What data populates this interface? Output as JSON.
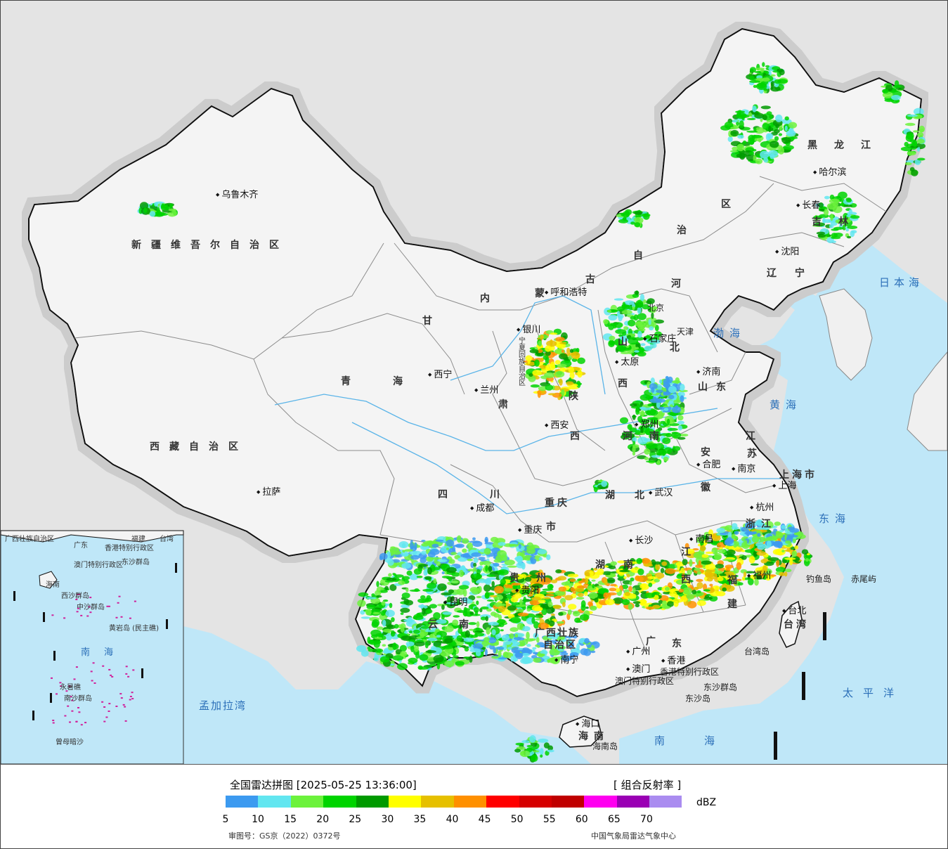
{
  "map": {
    "colors": {
      "land": "#f4f4f4",
      "outside": "#e4e4e4",
      "sea": "#bfe7f8",
      "border": "#111111",
      "province": "#8c8c8c",
      "river": "#5ab4e8"
    },
    "provinces": [
      {
        "id": "xinjiang",
        "text": "新疆维吾尔自治区"
      },
      {
        "id": "xizang",
        "text": "西藏自治区"
      },
      {
        "id": "qinghai",
        "text": "青海"
      },
      {
        "id": "gansu",
        "text": "甘"
      },
      {
        "id": "gansu2",
        "text": "肃"
      },
      {
        "id": "neimenggu1",
        "text": "内"
      },
      {
        "id": "neimenggu2",
        "text": "蒙"
      },
      {
        "id": "neimenggu3",
        "text": "古"
      },
      {
        "id": "neimenggu4",
        "text": "自"
      },
      {
        "id": "neimenggu5",
        "text": "治"
      },
      {
        "id": "neimenggu6",
        "text": "区"
      },
      {
        "id": "heilongjiang",
        "text": "黑龙江"
      },
      {
        "id": "jilin",
        "text": "吉林"
      },
      {
        "id": "liaoning",
        "text": "辽宁"
      },
      {
        "id": "hebei1",
        "text": "河"
      },
      {
        "id": "hebei2",
        "text": "北"
      },
      {
        "id": "shanxi1",
        "text": "山"
      },
      {
        "id": "shanxi2",
        "text": "西"
      },
      {
        "id": "shaanxi1",
        "text": "陕"
      },
      {
        "id": "shaanxi2",
        "text": "西"
      },
      {
        "id": "shandong",
        "text": "山东"
      },
      {
        "id": "henan",
        "text": "河南"
      },
      {
        "id": "jiangsu1",
        "text": "江"
      },
      {
        "id": "jiangsu2",
        "text": "苏"
      },
      {
        "id": "anhui1",
        "text": "安"
      },
      {
        "id": "anhui2",
        "text": "徽"
      },
      {
        "id": "shanghai",
        "text": "上海市"
      },
      {
        "id": "zhejiang",
        "text": "浙江"
      },
      {
        "id": "sichuan",
        "text": "四川"
      },
      {
        "id": "chongqing1",
        "text": "重庆"
      },
      {
        "id": "chongqing2",
        "text": "市"
      },
      {
        "id": "hubei",
        "text": "湖北"
      },
      {
        "id": "hunan1",
        "text": "湖"
      },
      {
        "id": "hunan2",
        "text": "南"
      },
      {
        "id": "jiangxi1",
        "text": "江"
      },
      {
        "id": "jiangxi2",
        "text": "西"
      },
      {
        "id": "fujian1",
        "text": "福"
      },
      {
        "id": "fujian2",
        "text": "建"
      },
      {
        "id": "guizhou",
        "text": "贵州"
      },
      {
        "id": "yunnan",
        "text": "云南"
      },
      {
        "id": "guangxi1",
        "text": "广西壮族"
      },
      {
        "id": "guangxi2",
        "text": "自治区"
      },
      {
        "id": "guangdong1",
        "text": "广"
      },
      {
        "id": "guangdong2",
        "text": "东"
      },
      {
        "id": "taiwan",
        "text": "台湾"
      },
      {
        "id": "hainan",
        "text": "海南"
      },
      {
        "id": "ningxia",
        "text": "宁夏回族自治区"
      },
      {
        "id": "hk",
        "text": "香港特别行政区"
      },
      {
        "id": "macau",
        "text": "澳门特别行政区"
      },
      {
        "id": "beijing",
        "text": "北京"
      },
      {
        "id": "tianjin",
        "text": "天津"
      }
    ],
    "cities": [
      {
        "id": "urumqi",
        "text": "乌鲁木齐"
      },
      {
        "id": "lhasa",
        "text": "拉萨"
      },
      {
        "id": "xining",
        "text": "西宁"
      },
      {
        "id": "lanzhou",
        "text": "兰州"
      },
      {
        "id": "yinchuan",
        "text": "银川"
      },
      {
        "id": "hohhot",
        "text": "呼和浩特"
      },
      {
        "id": "harbin",
        "text": "哈尔滨"
      },
      {
        "id": "changchun",
        "text": "长春"
      },
      {
        "id": "shenyang",
        "text": "沈阳"
      },
      {
        "id": "shijiazhuang",
        "text": "石家庄"
      },
      {
        "id": "taiyuan",
        "text": "太原"
      },
      {
        "id": "jinan",
        "text": "济南"
      },
      {
        "id": "zhengzhou",
        "text": "郑州"
      },
      {
        "id": "xian",
        "text": "西安"
      },
      {
        "id": "hefei",
        "text": "合肥"
      },
      {
        "id": "nanjing",
        "text": "南京"
      },
      {
        "id": "shanghaicity",
        "text": "上海"
      },
      {
        "id": "hangzhou",
        "text": "杭州"
      },
      {
        "id": "wuhan",
        "text": "武汉"
      },
      {
        "id": "chengdu",
        "text": "成都"
      },
      {
        "id": "chongqingcity",
        "text": "重庆"
      },
      {
        "id": "changsha",
        "text": "长沙"
      },
      {
        "id": "nanchang",
        "text": "南昌"
      },
      {
        "id": "fuzhou",
        "text": "福州"
      },
      {
        "id": "guiyang",
        "text": "贵阳"
      },
      {
        "id": "kunming",
        "text": "昆明"
      },
      {
        "id": "nanning",
        "text": "南宁"
      },
      {
        "id": "guangzhou",
        "text": "广州"
      },
      {
        "id": "xianggang",
        "text": "香港"
      },
      {
        "id": "aomen",
        "text": "澳门"
      },
      {
        "id": "haikou",
        "text": "海口"
      },
      {
        "id": "taibei",
        "text": "台北"
      }
    ],
    "seas": [
      {
        "id": "bohai",
        "text": "渤海"
      },
      {
        "id": "huanghai",
        "text": "黄海"
      },
      {
        "id": "donghai",
        "text": "东海"
      },
      {
        "id": "nanhai",
        "text": "南海"
      },
      {
        "id": "taipingyang",
        "text": "太平洋"
      },
      {
        "id": "ribenhai",
        "text": "日本海"
      },
      {
        "id": "mengjialawan",
        "text": "孟加拉湾"
      }
    ],
    "islands": [
      {
        "id": "diaoyudao",
        "text": "钓鱼岛"
      },
      {
        "id": "chiweiyu",
        "text": "赤尾屿"
      },
      {
        "id": "taiwandao",
        "text": "台湾岛"
      },
      {
        "id": "dongshaqundao",
        "text": "东沙群岛"
      },
      {
        "id": "dongshadao",
        "text": "东沙岛"
      },
      {
        "id": "hainandao",
        "text": "海南岛"
      }
    ],
    "inset": {
      "labels": [
        {
          "id": "gx",
          "text": "广西壮族自治区"
        },
        {
          "id": "gd",
          "text": "广东"
        },
        {
          "id": "fj",
          "text": "福建"
        },
        {
          "id": "tw",
          "text": "台湾"
        },
        {
          "id": "xg",
          "text": "香港特别行政区"
        },
        {
          "id": "am",
          "text": "澳门特别行政区"
        },
        {
          "id": "dsqd",
          "text": "东沙群岛"
        },
        {
          "id": "hn",
          "text": "海南"
        },
        {
          "id": "xsqd",
          "text": "西沙群岛"
        },
        {
          "id": "zsqd",
          "text": "中沙群岛"
        },
        {
          "id": "hyd",
          "text": "黄岩岛 (民主礁)"
        },
        {
          "id": "nh",
          "text": "南海"
        },
        {
          "id": "nsqd",
          "text": "南沙群岛"
        },
        {
          "id": "zmaj",
          "text": "曾母暗沙"
        },
        {
          "id": "yss",
          "text": "永暑礁"
        }
      ]
    }
  },
  "legend": {
    "title": "全国雷达拼图 [2025-05-25 13:36:00]",
    "type": "[ 组合反射率 ]",
    "unit": "dBZ",
    "ticks": [
      "5",
      "10",
      "15",
      "20",
      "25",
      "30",
      "35",
      "40",
      "45",
      "50",
      "55",
      "60",
      "65",
      "70"
    ],
    "colors": [
      "#3c9af0",
      "#62e6f0",
      "#6cf23c",
      "#00d400",
      "#009a00",
      "#ffff00",
      "#e6c000",
      "#ff9000",
      "#ff0000",
      "#d60000",
      "#c00000",
      "#ff00f0",
      "#9a00b4",
      "#aa8cf0"
    ],
    "review_no": "审图号：GS京（2022）0372号",
    "source": "中国气象局雷达气象中心"
  }
}
